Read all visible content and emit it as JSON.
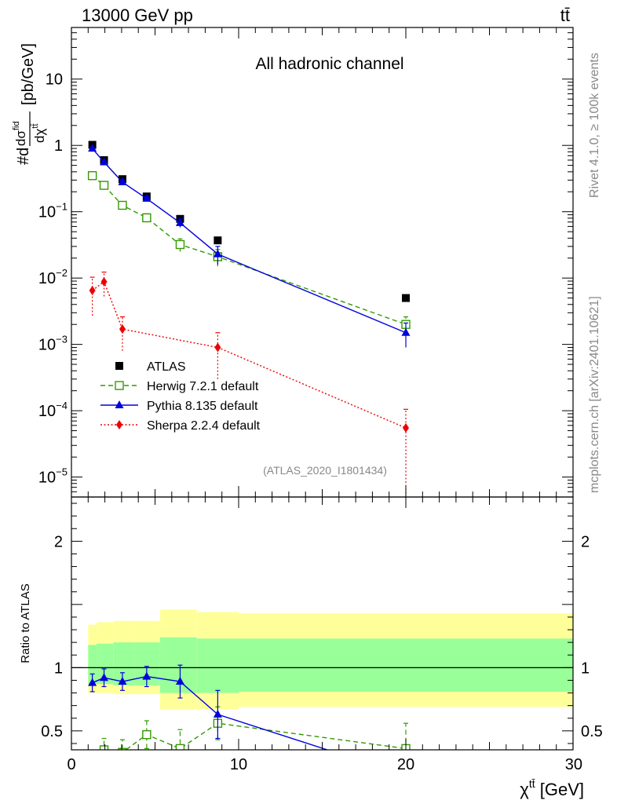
{
  "chart_data": [
    {
      "type": "line",
      "yscale": "log",
      "title": "All hadronic channel",
      "header_left": "13000 GeV pp",
      "header_right": "tt̄",
      "ylabel": "#d dσ^{fid} / dχ^{tt̄} [pb/GeV]",
      "ylabel_main": "#d",
      "ylabel_num": "dσ",
      "ylabel_num_sup": "fid",
      "ylabel_den": "dχ",
      "ylabel_den_sup": "tt̄",
      "ylabel_units": "[pb/GeV]",
      "xlim": [
        0,
        30
      ],
      "ylim": [
        5e-06,
        60
      ],
      "y_ticks": [
        {
          "value": 10,
          "base": "10",
          "exp": ""
        },
        {
          "value": 1,
          "base": "1",
          "exp": ""
        },
        {
          "value": 0.1,
          "base": "10",
          "exp": "−1"
        },
        {
          "value": 0.01,
          "base": "10",
          "exp": "−2"
        },
        {
          "value": 0.001,
          "base": "10",
          "exp": "−3"
        },
        {
          "value": 0.0001,
          "base": "10",
          "exp": "−4"
        },
        {
          "value": 1e-05,
          "base": "10",
          "exp": "−5"
        }
      ],
      "watermark": "(ATLAS_2020_I1801434)",
      "side_text_top": "Rivet 4.1.0, ≥ 100k events",
      "side_text_bottom": "mcplots.cern.ch [arXiv:2401.10621]",
      "legend_position": "bottom-left",
      "series": [
        {
          "name": "ATLAS",
          "color": "#000000",
          "marker": "square-filled",
          "x": [
            1.25,
            1.95,
            3.05,
            4.5,
            6.5,
            8.75,
            20.0
          ],
          "y": [
            1.02,
            0.6,
            0.31,
            0.17,
            0.078,
            0.037,
            0.005
          ]
        },
        {
          "name": "Herwig 7.2.1 default",
          "color": "#339900",
          "marker": "square-open",
          "line": "dashed",
          "x": [
            1.25,
            1.95,
            3.05,
            4.5,
            6.5,
            8.75,
            20.0
          ],
          "y": [
            0.35,
            0.25,
            0.125,
            0.081,
            0.032,
            0.021,
            0.002
          ],
          "yerr": [
            0.02,
            0.02,
            0.015,
            0.012,
            0.007,
            0.006,
            0.0006
          ]
        },
        {
          "name": "Pythia 8.135 default",
          "color": "#0000dd",
          "marker": "triangle-filled",
          "line": "solid",
          "x": [
            1.25,
            1.95,
            3.05,
            4.5,
            6.5,
            8.75,
            20.0
          ],
          "y": [
            0.9,
            0.56,
            0.28,
            0.158,
            0.068,
            0.023,
            0.0015
          ],
          "yerr": [
            0.04,
            0.03,
            0.02,
            0.012,
            0.01,
            0.007,
            0.0006
          ]
        },
        {
          "name": "Sherpa 2.2.4 default",
          "color": "#ee0000",
          "marker": "diamond-filled",
          "line": "dotted",
          "x": [
            1.25,
            1.95,
            3.05,
            8.75,
            20.0
          ],
          "y": [
            0.0065,
            0.0088,
            0.0017,
            0.0009,
            5.5e-05
          ],
          "yerr": [
            0.0038,
            0.0035,
            0.0009,
            0.0006,
            5e-05
          ]
        }
      ]
    },
    {
      "type": "line",
      "yscale": "linear",
      "ylabel": "Ratio to ATLAS",
      "xlabel_base": "χ",
      "xlabel_sup": "tt̄",
      "xlabel_units": " [GeV]",
      "xlim": [
        0,
        30
      ],
      "ylim": [
        0.35,
        2.35
      ],
      "x_ticks": [
        {
          "value": 0,
          "label": "0"
        },
        {
          "value": 10,
          "label": "10"
        },
        {
          "value": 20,
          "label": "20"
        },
        {
          "value": 30,
          "label": "30"
        }
      ],
      "y_ticks": [
        {
          "value": 0.5,
          "label": "0.5"
        },
        {
          "value": 1,
          "label": "1"
        },
        {
          "value": 2,
          "label": "2"
        }
      ],
      "uncertainty_bands": {
        "edges": [
          1.0,
          1.5,
          2.5,
          3.8,
          5.3,
          7.5,
          10.0,
          30.0
        ],
        "yellow": [
          [
            0.8,
            1.34
          ],
          [
            0.8,
            1.36
          ],
          [
            0.79,
            1.37
          ],
          [
            0.79,
            1.37
          ],
          [
            0.67,
            1.46
          ],
          [
            0.67,
            1.44
          ],
          [
            0.69,
            1.43
          ]
        ],
        "green": [
          [
            0.87,
            1.18
          ],
          [
            0.87,
            1.19
          ],
          [
            0.86,
            1.2
          ],
          [
            0.86,
            1.2
          ],
          [
            0.8,
            1.24
          ],
          [
            0.8,
            1.23
          ],
          [
            0.81,
            1.23
          ]
        ]
      },
      "series": [
        {
          "name": "Herwig 7.2.1 default",
          "color": "#339900",
          "marker": "square-open",
          "line": "dashed",
          "x": [
            1.95,
            3.05,
            4.5,
            6.5,
            8.75,
            20.0
          ],
          "y": [
            0.35,
            0.33,
            0.47,
            0.36,
            0.56,
            0.36
          ],
          "yerr": [
            0.09,
            0.1,
            0.11,
            0.15,
            0.13,
            0.2
          ]
        },
        {
          "name": "Pythia 8.135 default",
          "color": "#0000dd",
          "marker": "triangle-filled",
          "line": "solid",
          "x": [
            1.25,
            1.95,
            3.05,
            4.5,
            6.5,
            8.75,
            15.3
          ],
          "y": [
            0.88,
            0.92,
            0.89,
            0.93,
            0.89,
            0.63,
            0.35
          ],
          "yerr": [
            0.07,
            0.07,
            0.07,
            0.08,
            0.13,
            0.19,
            0
          ],
          "marker_visible": [
            true,
            true,
            true,
            true,
            true,
            true,
            false
          ]
        }
      ]
    }
  ]
}
